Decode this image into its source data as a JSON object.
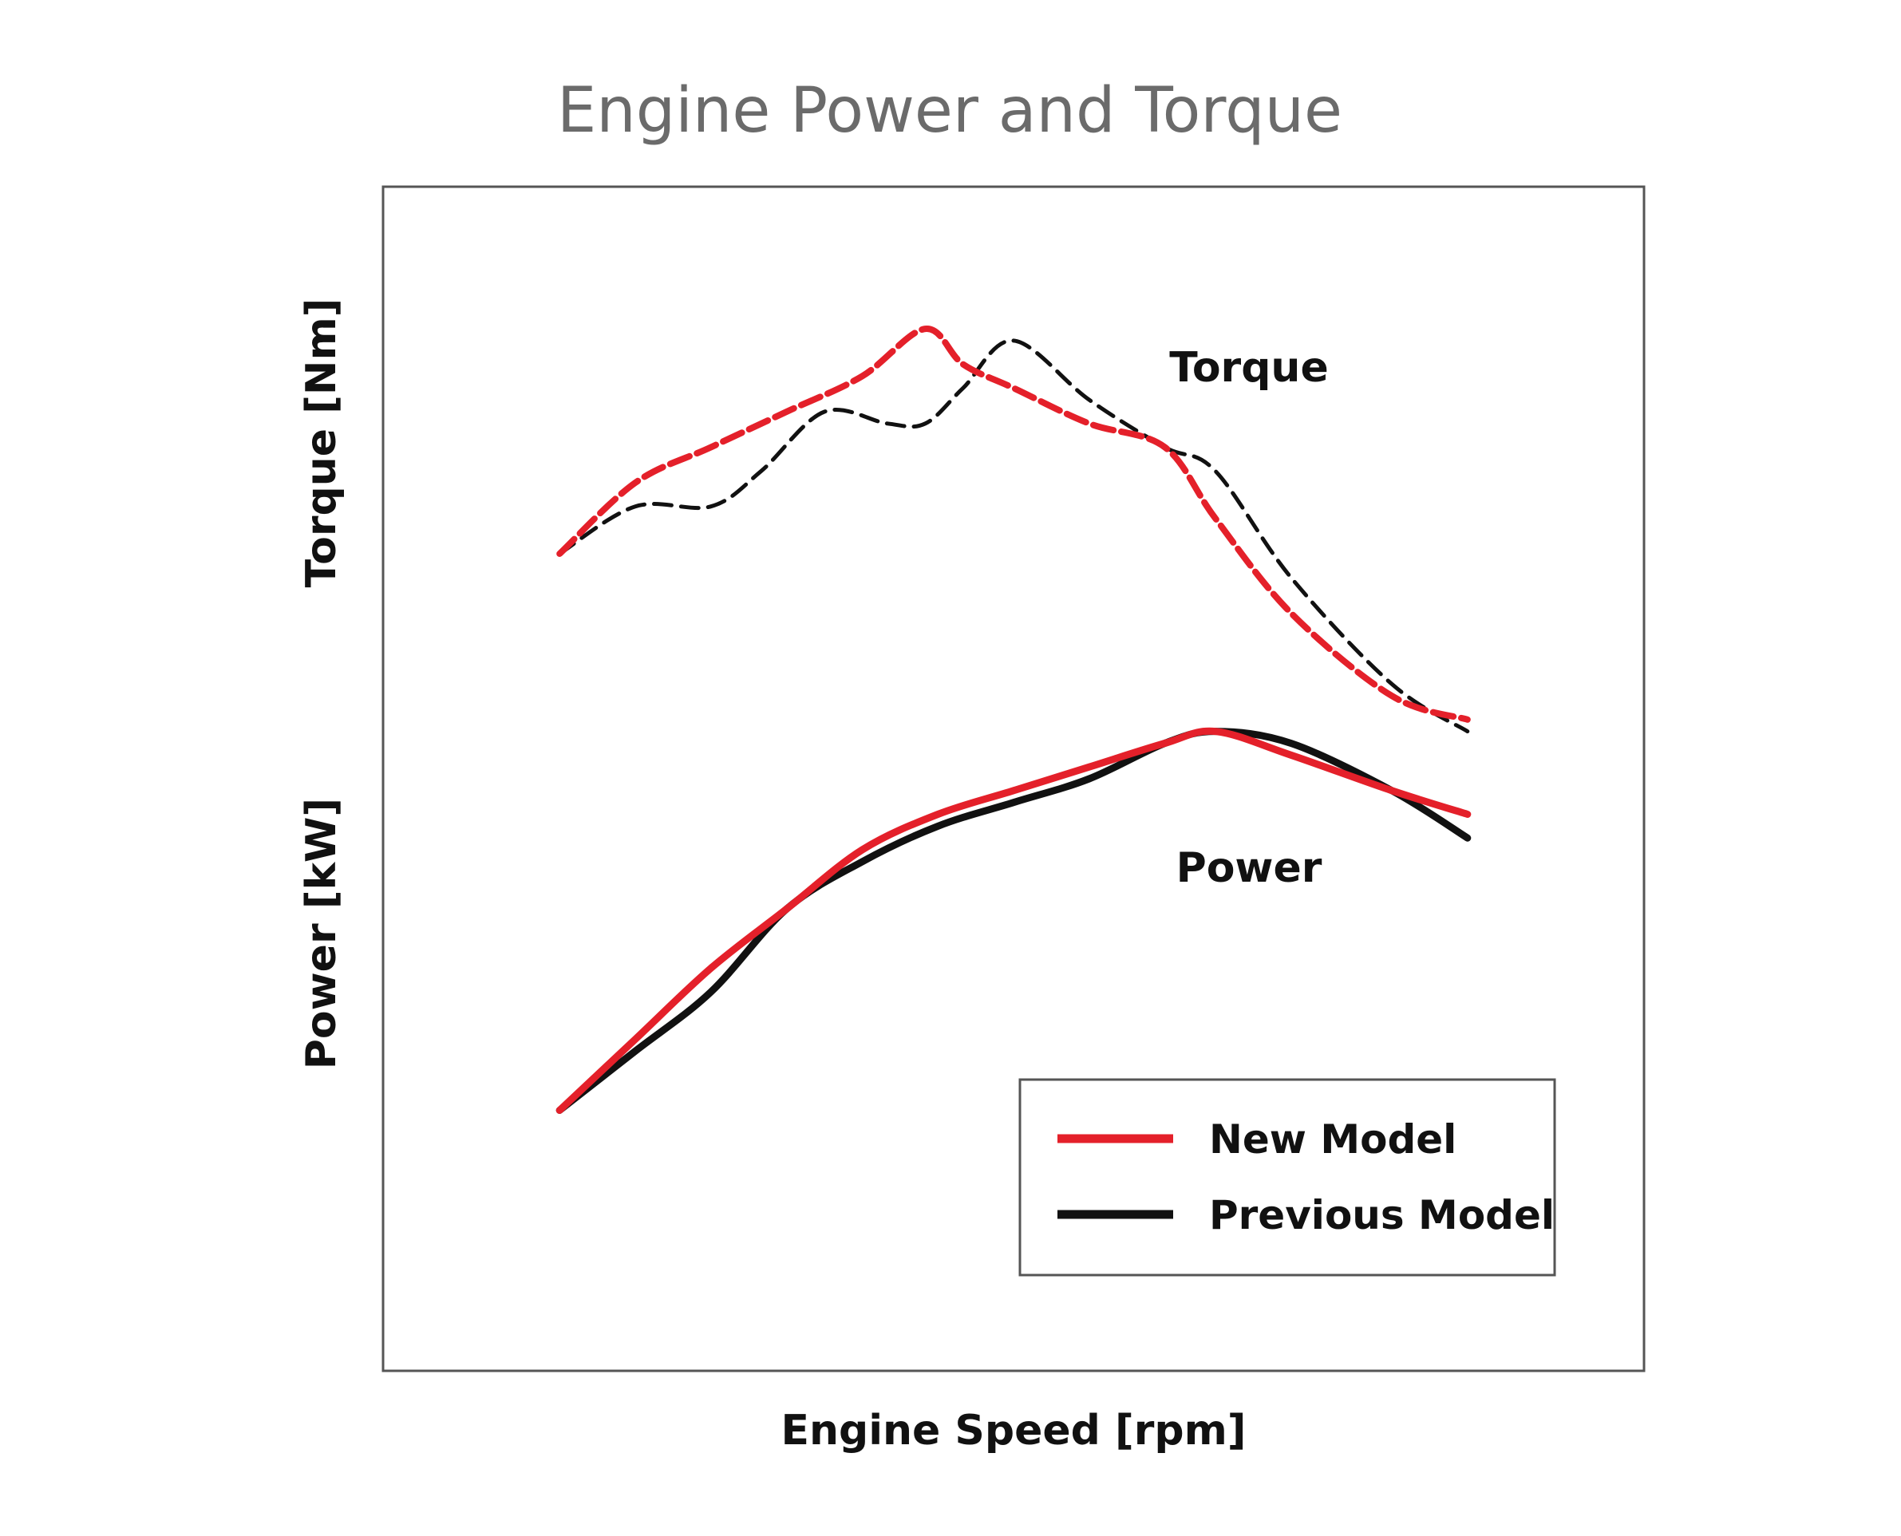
{
  "chart_data": {
    "type": "line",
    "title": "Engine Power and Torque",
    "xlabel": "Engine Speed [rpm]",
    "ylabel_top": "Torque [Nm]",
    "ylabel_bottom": "Power [kW]",
    "xlim": [
      0,
      100
    ],
    "ylim": [
      0,
      100
    ],
    "grid": false,
    "ticks_shown": false,
    "legend": {
      "position": "bottom-right",
      "entries": [
        {
          "label": "New Model",
          "color": "#e4202a",
          "style": "solid"
        },
        {
          "label": "Previous Model",
          "color": "#111111",
          "style": "solid"
        }
      ]
    },
    "annotations": {
      "torque_label": "Torque",
      "power_label": "Power"
    },
    "series": [
      {
        "name": "Torque - New Model",
        "group": "torque",
        "color": "#e4202a",
        "dash": true,
        "x": [
          14,
          20,
          26,
          32,
          38,
          43,
          46,
          50,
          56,
          62,
          66,
          72,
          80,
          86
        ],
        "y": [
          69,
          75,
          78,
          81,
          84,
          88,
          85,
          83,
          80,
          78,
          72,
          64,
          57,
          55
        ]
      },
      {
        "name": "Torque - Previous Model",
        "group": "torque",
        "color": "#111111",
        "dash": true,
        "x": [
          14,
          20,
          26,
          30,
          35,
          40,
          43,
          46,
          50,
          56,
          62,
          66,
          72,
          80,
          86
        ],
        "y": [
          69,
          73,
          73,
          76,
          81,
          80,
          80,
          83,
          87,
          82,
          78,
          76,
          67,
          58,
          54
        ]
      },
      {
        "name": "Power - New Model",
        "group": "power",
        "color": "#e4202a",
        "dash": false,
        "x": [
          14,
          20,
          26,
          32,
          38,
          44,
          50,
          56,
          62,
          66,
          72,
          80,
          86
        ],
        "y": [
          22,
          28,
          34,
          39,
          44,
          47,
          49,
          51,
          53,
          54,
          52,
          49,
          47
        ]
      },
      {
        "name": "Power - Previous Model",
        "group": "power",
        "color": "#111111",
        "dash": false,
        "x": [
          14,
          20,
          26,
          32,
          38,
          44,
          50,
          56,
          62,
          66,
          72,
          80,
          86
        ],
        "y": [
          22,
          27,
          32,
          39,
          43,
          46,
          48,
          50,
          53,
          54,
          53,
          49,
          45
        ]
      }
    ]
  }
}
